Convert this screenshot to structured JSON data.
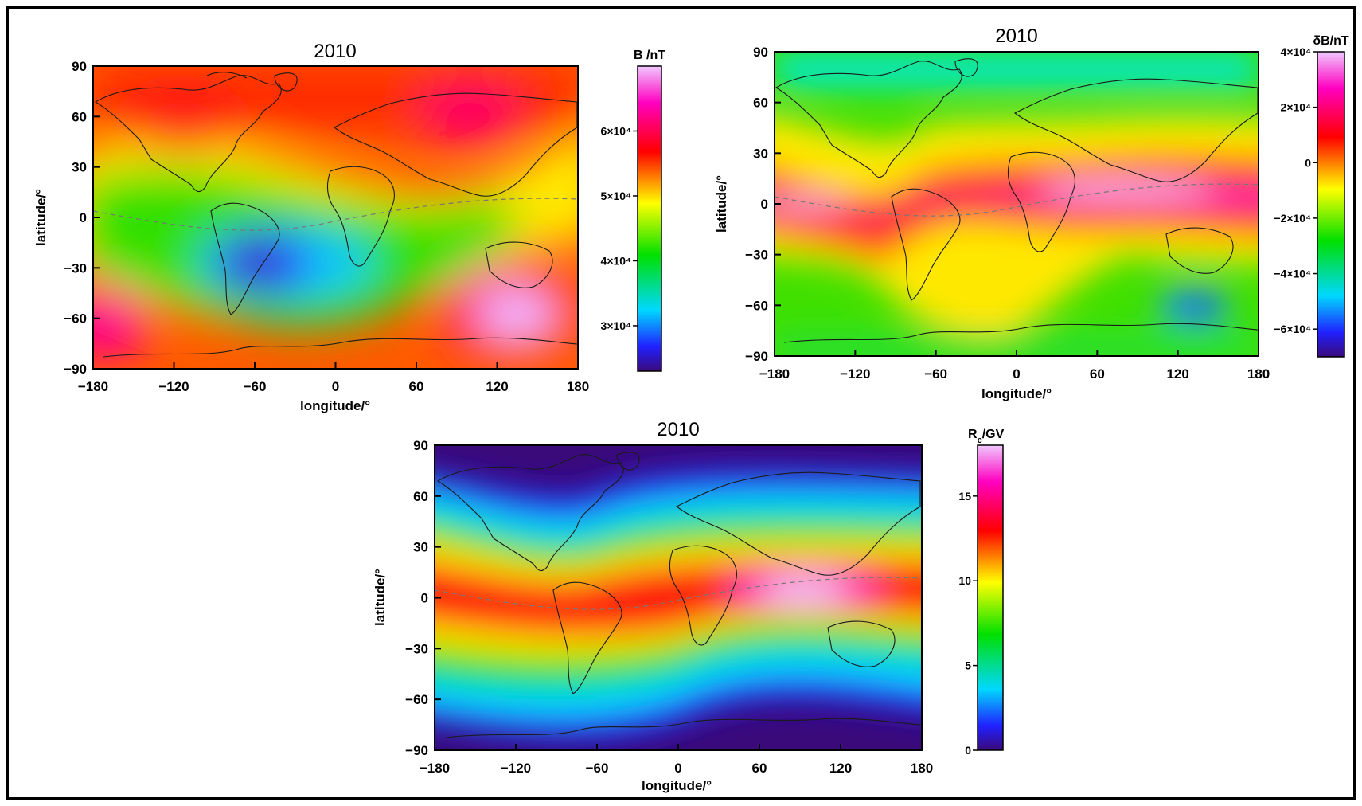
{
  "panels": [
    {
      "title": "2010",
      "xlabel": "longitude/°",
      "ylabel": "latitude/°",
      "xticks": [
        "−180",
        "−120",
        "−60",
        "0",
        "60",
        "120",
        "180"
      ],
      "yticks": [
        "90",
        "60",
        "30",
        "0",
        "−30",
        "−60",
        "−90"
      ],
      "colorbar": {
        "title": "B /nT",
        "ticks": [
          {
            "value": 60000,
            "label": "6×10⁴"
          },
          {
            "value": 50000,
            "label": "5×10⁴"
          },
          {
            "value": 40000,
            "label": "4×10⁴"
          },
          {
            "value": 30000,
            "label": "3×10⁴"
          }
        ],
        "range": [
          23000,
          70000
        ]
      }
    },
    {
      "title": "2010",
      "xlabel": "longitude/°",
      "ylabel": "latitude/°",
      "xticks": [
        "−180",
        "−120",
        "−60",
        "0",
        "60",
        "120",
        "180"
      ],
      "yticks": [
        "90",
        "60",
        "30",
        "0",
        "−30",
        "−60",
        "−90"
      ],
      "colorbar": {
        "title": "δB/nT",
        "ticks": [
          {
            "value": 40000,
            "label": "4×10⁴"
          },
          {
            "value": 20000,
            "label": "2×10⁴"
          },
          {
            "value": 0,
            "label": "0"
          },
          {
            "value": -20000,
            "label": "−2×10⁴"
          },
          {
            "value": -40000,
            "label": "−4×10⁴"
          },
          {
            "value": -60000,
            "label": "−6×10⁴"
          }
        ],
        "range": [
          -70000,
          40000
        ]
      }
    },
    {
      "title": "2010",
      "xlabel": "longitude/°",
      "ylabel": "latitude/°",
      "xticks": [
        "−180",
        "−120",
        "−60",
        "0",
        "60",
        "120",
        "180"
      ],
      "yticks": [
        "90",
        "60",
        "30",
        "0",
        "−30",
        "−60",
        "−90"
      ],
      "colorbar": {
        "title": "R",
        "title_sub": "c",
        "title_suffix": "/GV",
        "ticks": [
          {
            "value": 15,
            "label": "15"
          },
          {
            "value": 10,
            "label": "10"
          },
          {
            "value": 5,
            "label": "5"
          },
          {
            "value": 0,
            "label": "0"
          }
        ],
        "range": [
          0,
          18
        ]
      }
    }
  ],
  "colors": {
    "rainbow": [
      "#3a0a7a",
      "#2020ff",
      "#00d8ff",
      "#00e000",
      "#ffff00",
      "#ff0000",
      "#ff00c0",
      "#f0c8ff"
    ],
    "coastline": "#1a1a1a",
    "equator": "#777777"
  }
}
